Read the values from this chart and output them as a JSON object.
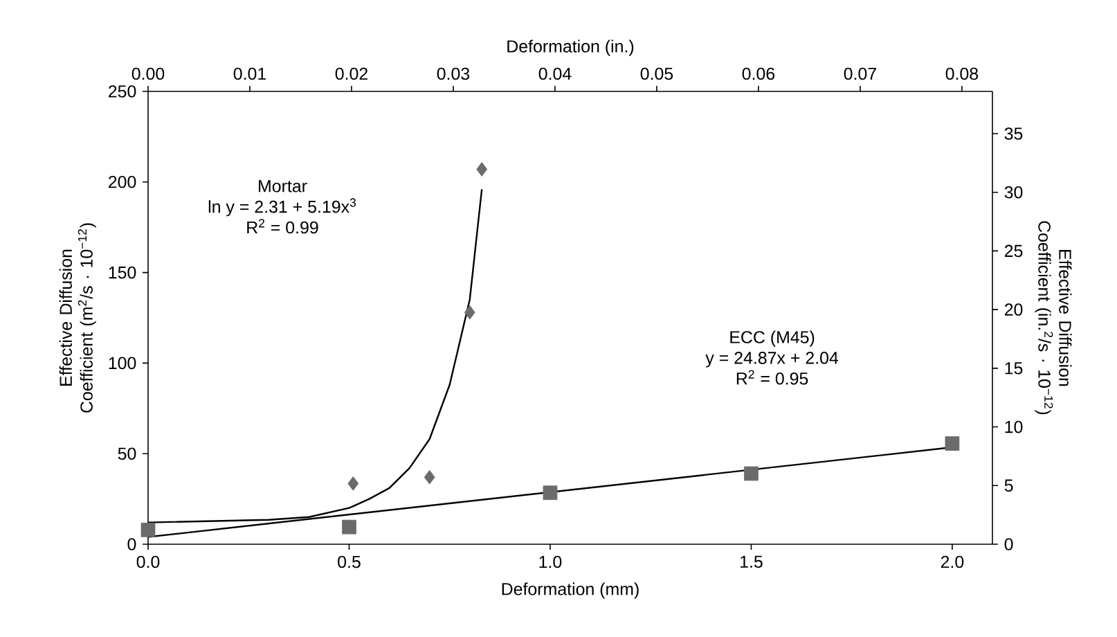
{
  "chart_data": {
    "type": "scatter",
    "xlabel": "Deformation (mm)",
    "x2label": "Deformation (in.)",
    "ylabel": "Effective Diffusion Coefficient (m$^{2}$/s · 10$^{−12}$)",
    "y2label": "Effective Diffusion Coefficient (in.$^{2}$/s · 10$^{−12}$)",
    "xlim": [
      0,
      2.1
    ],
    "ylim": [
      0,
      250
    ],
    "x2lim": [
      0,
      0.083
    ],
    "y2lim": [
      0,
      38.6
    ],
    "xticks": [
      {
        "value": 0,
        "label": "0.0"
      },
      {
        "value": 0.5,
        "label": "0.5"
      },
      {
        "value": 1,
        "label": "1.0"
      },
      {
        "value": 1.5,
        "label": "1.5"
      },
      {
        "value": 2,
        "label": "2.0"
      }
    ],
    "yticks": [
      0,
      50,
      100,
      150,
      200,
      250
    ],
    "x2ticks": [
      {
        "value": 0,
        "label": "0.00"
      },
      {
        "value": 0.01,
        "label": "0.01"
      },
      {
        "value": 0.02,
        "label": "0.02"
      },
      {
        "value": 0.03,
        "label": "0.03"
      },
      {
        "value": 0.04,
        "label": "0.04"
      },
      {
        "value": 0.05,
        "label": "0.05"
      },
      {
        "value": 0.06,
        "label": "0.06"
      },
      {
        "value": 0.07,
        "label": "0.07"
      },
      {
        "value": 0.08,
        "label": "0.08"
      }
    ],
    "y2ticks": [
      0,
      5,
      10,
      15,
      20,
      25,
      30,
      35
    ],
    "grid": false,
    "series": [
      {
        "marker": "diamond",
        "color": "#6b6b6b",
        "x": [
          0.51,
          0.7,
          0.8,
          0.83
        ],
        "values": [
          33.5,
          37,
          128,
          207
        ]
      },
      {
        "marker": "square",
        "color": "#6b6b6b",
        "x": [
          0,
          0.5,
          1,
          1.5,
          2
        ],
        "values": [
          7.9,
          9.5,
          28.4,
          39,
          55.6
        ]
      },
      {
        "type": "line",
        "marker": "none",
        "color": "#000000",
        "x": [
          0,
          0.3,
          0.4,
          0.5,
          0.55,
          0.6,
          0.65,
          0.7,
          0.75,
          0.8,
          0.83
        ],
        "values": [
          12,
          13.5,
          15,
          20,
          25,
          31,
          42,
          58,
          88,
          135,
          196
        ]
      },
      {
        "type": "line",
        "marker": "none",
        "color": "#000000",
        "x": [
          0,
          2
        ],
        "values": [
          4,
          53.5
        ]
      }
    ],
    "annotations": [
      "Mortar",
      "ln y = 2.31 + 5.19x$^{3}$",
      "R$^{2}$ = 0.99",
      "ECC (M45)",
      "y = 24.87x + 2.04",
      "R$^{2}$ = 0.95"
    ]
  }
}
